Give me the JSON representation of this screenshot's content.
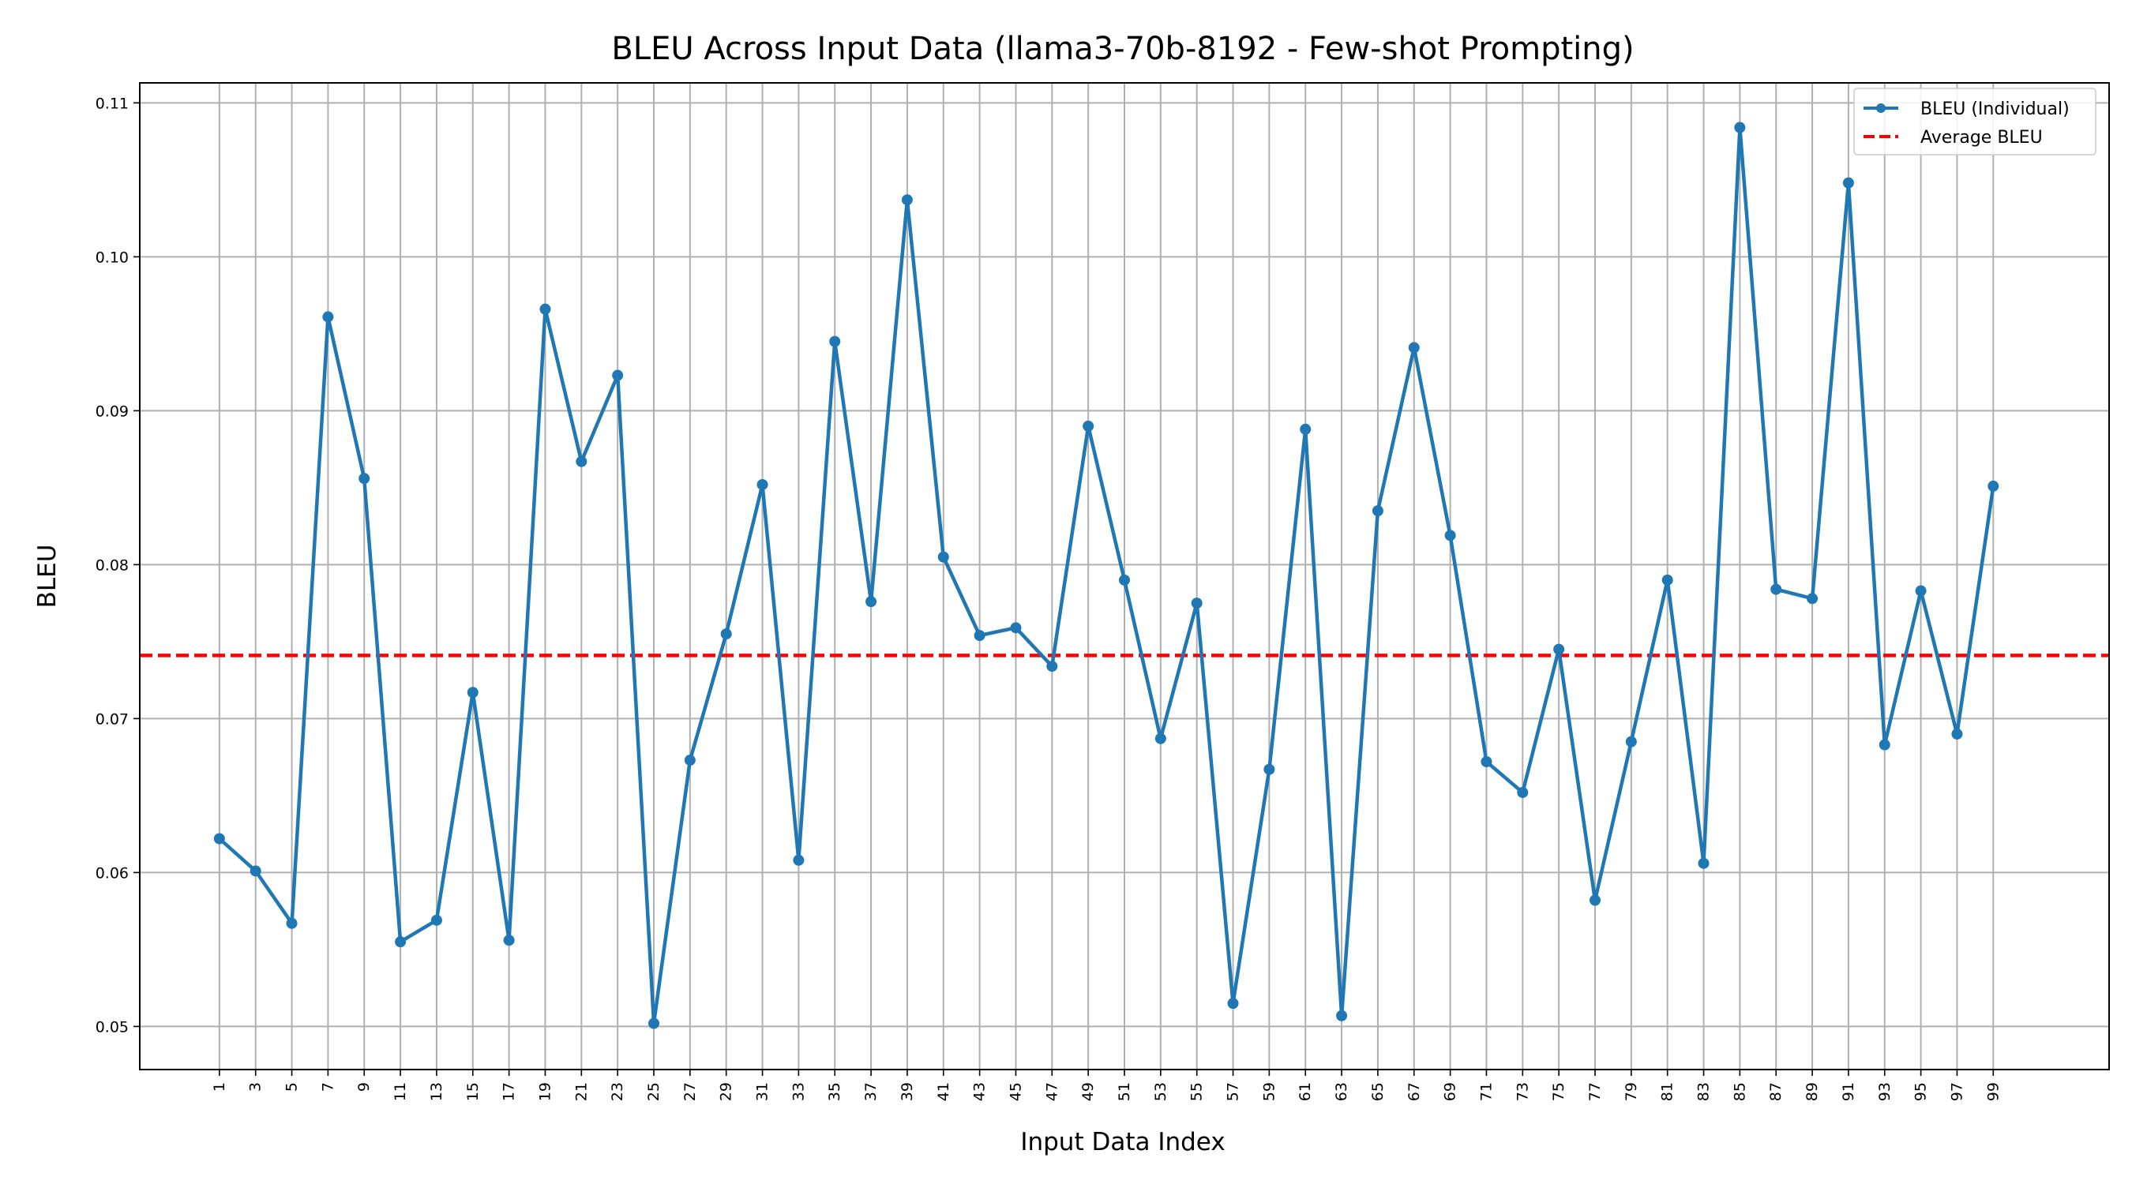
{
  "chart_data": {
    "type": "line",
    "title": "BLEU Across Input Data (llama3-70b-8192 - Few-shot Prompting)",
    "xlabel": "Input Data Index",
    "ylabel": "BLEU",
    "x": [
      1,
      3,
      5,
      7,
      9,
      11,
      13,
      15,
      17,
      19,
      21,
      23,
      25,
      27,
      29,
      31,
      33,
      35,
      37,
      39,
      41,
      43,
      45,
      47,
      49,
      51,
      53,
      55,
      57,
      59,
      61,
      63,
      65,
      67,
      69,
      71,
      73,
      75,
      77,
      79,
      81,
      83,
      85,
      87,
      89,
      91,
      93,
      95,
      97,
      99
    ],
    "xticks": [
      1,
      3,
      5,
      7,
      9,
      11,
      13,
      15,
      17,
      19,
      21,
      23,
      25,
      27,
      29,
      31,
      33,
      35,
      37,
      39,
      41,
      43,
      45,
      47,
      49,
      51,
      53,
      55,
      57,
      59,
      61,
      63,
      65,
      67,
      69,
      71,
      73,
      75,
      77,
      79,
      81,
      83,
      85,
      87,
      89,
      91,
      93,
      95,
      97,
      99
    ],
    "yticks": [
      "0.05",
      "0.06",
      "0.07",
      "0.08",
      "0.09",
      "0.10",
      "0.11"
    ],
    "xlim": [
      -3.4,
      105.4
    ],
    "ylim": [
      0.0472,
      0.1113
    ],
    "grid": true,
    "legend_position": "top-right",
    "series": [
      {
        "name": "BLEU (Individual)",
        "color": "#1f77b4",
        "style": "solid-with-markers",
        "values": [
          0.0622,
          0.0601,
          0.0567,
          0.0961,
          0.0856,
          0.0555,
          0.0569,
          0.0717,
          0.0556,
          0.0966,
          0.0867,
          0.0923,
          0.0502,
          0.0673,
          0.0755,
          0.0852,
          0.0608,
          0.0945,
          0.0776,
          0.1037,
          0.0805,
          0.0754,
          0.0759,
          0.0734,
          0.089,
          0.079,
          0.0687,
          0.0775,
          0.0515,
          0.0667,
          0.0888,
          0.0507,
          0.0835,
          0.0941,
          0.0819,
          0.0672,
          0.0652,
          0.0745,
          0.0582,
          0.0685,
          0.079,
          0.0606,
          0.1084,
          0.0784,
          0.0778,
          0.1048,
          0.0683,
          0.0783,
          0.069,
          0.0851
        ]
      },
      {
        "name": "Average BLEU",
        "color": "#ff0000",
        "style": "dashed",
        "value": 0.0741
      }
    ]
  }
}
